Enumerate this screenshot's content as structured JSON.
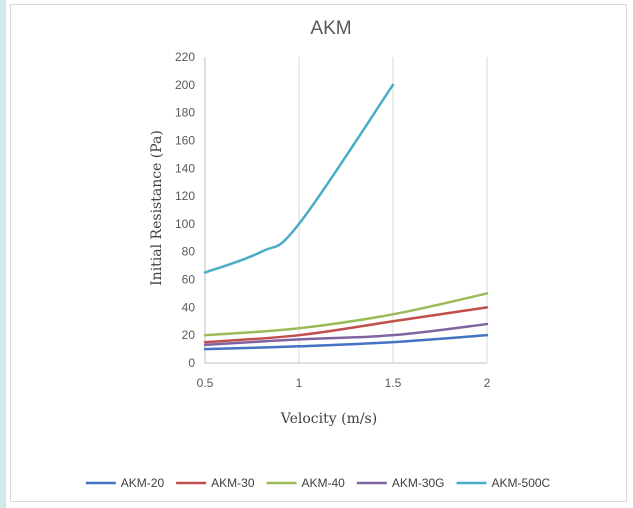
{
  "chart_data": {
    "type": "line",
    "title": "AKM",
    "xlabel": "Velocity (m/s)",
    "ylabel": "Initial Resistance (Pa)",
    "x_ticks": [
      "0.5",
      "1",
      "1.5",
      "2"
    ],
    "y_ticks": [
      "0",
      "20",
      "40",
      "60",
      "80",
      "100",
      "120",
      "140",
      "160",
      "180",
      "200",
      "220"
    ],
    "xlim": [
      0.5,
      2
    ],
    "ylim": [
      0,
      220
    ],
    "grid": "vertical",
    "legend_position": "bottom",
    "series": [
      {
        "name": "AKM-20",
        "color": "#4472c4",
        "x": [
          0.5,
          1,
          1.5,
          2
        ],
        "y": [
          10,
          12,
          15,
          20
        ]
      },
      {
        "name": "AKM-30",
        "color": "#c0504d",
        "x": [
          0.5,
          1,
          1.5,
          2
        ],
        "y": [
          15,
          20,
          30,
          40
        ]
      },
      {
        "name": "AKM-40",
        "color": "#9bbb59",
        "x": [
          0.5,
          1,
          1.5,
          2
        ],
        "y": [
          20,
          25,
          35,
          50
        ]
      },
      {
        "name": "AKM-30G",
        "color": "#8064a2",
        "x": [
          0.5,
          1,
          1.5,
          2
        ],
        "y": [
          13,
          17,
          20,
          28
        ]
      },
      {
        "name": "AKM-500C",
        "color": "#4bacc6",
        "x": [
          0.5,
          0.8,
          1,
          1.5
        ],
        "y": [
          65,
          80,
          100,
          200
        ]
      }
    ]
  }
}
